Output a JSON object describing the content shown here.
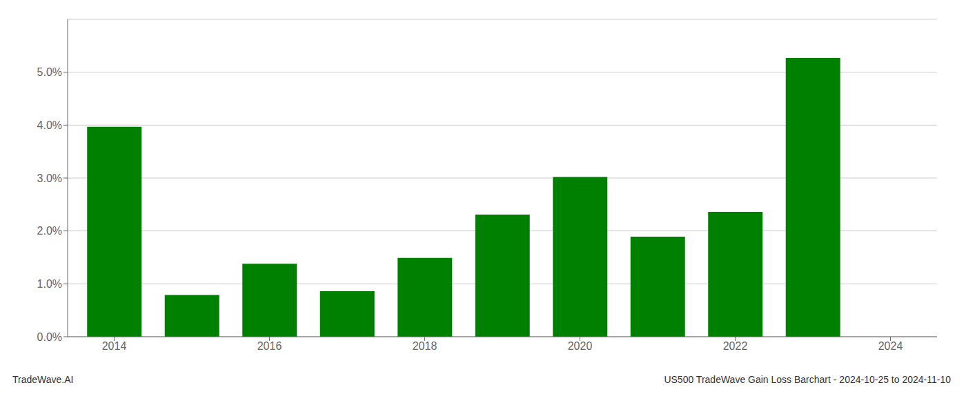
{
  "chart_data": {
    "type": "bar",
    "title": "US500 TradeWave Gain Loss Barchart - 2024-10-25 to 2024-11-10",
    "annotations": [
      "TradeWave.AI"
    ],
    "x": [
      2014,
      2015,
      2016,
      2017,
      2018,
      2019,
      2020,
      2021,
      2022,
      2023
    ],
    "values": [
      0.0397,
      0.0079,
      0.0138,
      0.0086,
      0.0149,
      0.0231,
      0.0302,
      0.0189,
      0.0236,
      0.0527
    ],
    "color": "#008000",
    "xlim": [
      2013.4,
      2024.6
    ],
    "xticks": [
      2014,
      2016,
      2018,
      2020,
      2022,
      2024
    ],
    "ylim": [
      0,
      0.06
    ],
    "yticks": [
      {
        "value": 0.0,
        "label": "0.0%"
      },
      {
        "value": 0.01,
        "label": "1.0%"
      },
      {
        "value": 0.02,
        "label": "2.0%"
      },
      {
        "value": 0.03,
        "label": "3.0%"
      },
      {
        "value": 0.04,
        "label": "4.0%"
      },
      {
        "value": 0.05,
        "label": "5.0%"
      }
    ],
    "grid": true
  }
}
